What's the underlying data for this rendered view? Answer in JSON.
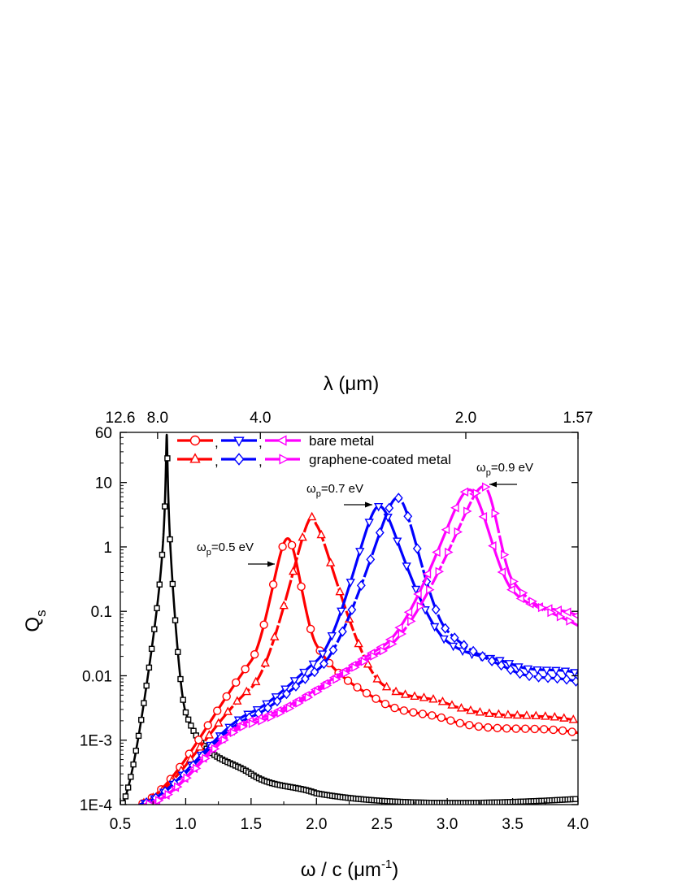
{
  "chart_data": {
    "type": "line",
    "xlabel": {
      "main": "ω / c (μm",
      "sup": "-1",
      "end": ")"
    },
    "ylabel": {
      "main": "Q",
      "sub": "s"
    },
    "top_axis_label": "λ (μm)",
    "xlim": [
      0.5,
      4.0
    ],
    "ylim": [
      0.0001,
      60
    ],
    "y_scale": "log",
    "x_ticks": [
      0.5,
      1.0,
      1.5,
      2.0,
      2.5,
      3.0,
      3.5,
      4.0
    ],
    "x_tick_labels": [
      "0.5",
      "1.0",
      "1.5",
      "2.0",
      "2.5",
      "3.0",
      "3.5",
      "4.0"
    ],
    "y_ticks": [
      0.0001,
      0.001,
      0.01,
      0.1,
      1,
      10,
      60
    ],
    "y_tick_labels": [
      "1E-4",
      "1E-3",
      "0.01",
      "0.1",
      "1",
      "10",
      "60"
    ],
    "top_ticks": [
      {
        "x": 0.5,
        "label": "12.6"
      },
      {
        "x": 0.785,
        "label": "8.0"
      },
      {
        "x": 1.571,
        "label": "4.0"
      },
      {
        "x": 3.142,
        "label": "2.0"
      },
      {
        "x": 4.0,
        "label": "1.57"
      }
    ],
    "legend": {
      "position": "top-left",
      "entries": [
        {
          "markers": [
            "circle",
            "triangle-down",
            "triangle-left"
          ],
          "label": "bare metal",
          "dashed": false
        },
        {
          "markers": [
            "triangle-up",
            "diamond",
            "triangle-right"
          ],
          "label": "graphene-coated metal",
          "dashed": true
        }
      ]
    },
    "annotations": [
      {
        "text": "ω",
        "sub": "p",
        "rest": "=0.5 eV",
        "x": 1.38,
        "y": 0.75
      },
      {
        "text": "ω",
        "sub": "p",
        "rest": "=0.7 eV",
        "x": 2.27,
        "y": 7.0
      },
      {
        "text": "ω",
        "sub": "p",
        "rest": "=0.9 eV",
        "x": 3.27,
        "y": 12.0
      }
    ],
    "series": [
      {
        "name": "",
        "color": "#000000",
        "marker": "square",
        "peak_x": 0.855,
        "peak_y": 55,
        "gamma": 0.0044,
        "y_at": [
          [
            0.5,
            9e-05
          ],
          [
            1.0,
            0.0027
          ],
          [
            1.5,
            0.0003
          ],
          [
            2.0,
            0.00015
          ]
        ]
      },
      {
        "name": "bare metal ωp=0.5 eV",
        "color": "#ff0000",
        "marker": "circle",
        "dashed": false,
        "peak_x": 1.78,
        "peak_y": 1.35,
        "y_at": [
          [
            0.65,
            0.0001
          ],
          [
            1.5,
            0.017
          ],
          [
            2.0,
            0.03
          ],
          [
            2.5,
            0.0039
          ],
          [
            3.0,
            0.0021
          ],
          [
            4.0,
            0.0013
          ]
        ]
      },
      {
        "name": "graphene-coated metal ωp=0.5 eV",
        "color": "#ff0000",
        "marker": "triangle-up",
        "dashed": true,
        "peak_x": 1.97,
        "peak_y": 2.9,
        "y_at": [
          [
            0.65,
            0.0001
          ],
          [
            1.5,
            0.0065
          ],
          [
            2.0,
            2.2
          ],
          [
            2.5,
            0.0075
          ],
          [
            3.0,
            0.0037
          ],
          [
            4.0,
            0.002
          ]
        ]
      },
      {
        "name": "bare metal ωp=0.7 eV",
        "color": "#0000ff",
        "marker": "triangle-down",
        "dashed": false,
        "peak_x": 2.48,
        "peak_y": 4.3,
        "y_at": [
          [
            0.65,
            0.0001
          ],
          [
            1.5,
            0.0027
          ],
          [
            2.0,
            0.017
          ],
          [
            3.0,
            0.034
          ],
          [
            3.5,
            0.015
          ],
          [
            4.0,
            0.011
          ]
        ]
      },
      {
        "name": "graphene-coated metal ωp=0.7 eV",
        "color": "#0000ff",
        "marker": "diamond",
        "dashed": true,
        "peak_x": 2.62,
        "peak_y": 5.8,
        "y_at": [
          [
            0.65,
            0.0001
          ],
          [
            1.5,
            0.0023
          ],
          [
            2.0,
            0.012
          ],
          [
            3.0,
            0.05
          ],
          [
            3.5,
            0.012
          ],
          [
            4.0,
            0.008
          ]
        ]
      },
      {
        "name": "bare metal ωp=0.9 eV",
        "color": "#ff00ff",
        "marker": "triangle-left",
        "dashed": false,
        "peak_x": 3.17,
        "peak_y": 7.7,
        "y_at": [
          [
            0.7,
            0.0001
          ],
          [
            1.5,
            0.002
          ],
          [
            2.5,
            0.028
          ],
          [
            3.5,
            0.21
          ],
          [
            4.0,
            0.085
          ]
        ]
      },
      {
        "name": "graphene-coated metal ωp=0.9 eV",
        "color": "#ff00ff",
        "marker": "triangle-right",
        "dashed": true,
        "peak_x": 3.28,
        "peak_y": 8.7,
        "y_at": [
          [
            0.7,
            0.0001
          ],
          [
            1.5,
            0.0018
          ],
          [
            2.5,
            0.024
          ],
          [
            3.5,
            0.3
          ],
          [
            4.0,
            0.06
          ]
        ]
      }
    ]
  }
}
